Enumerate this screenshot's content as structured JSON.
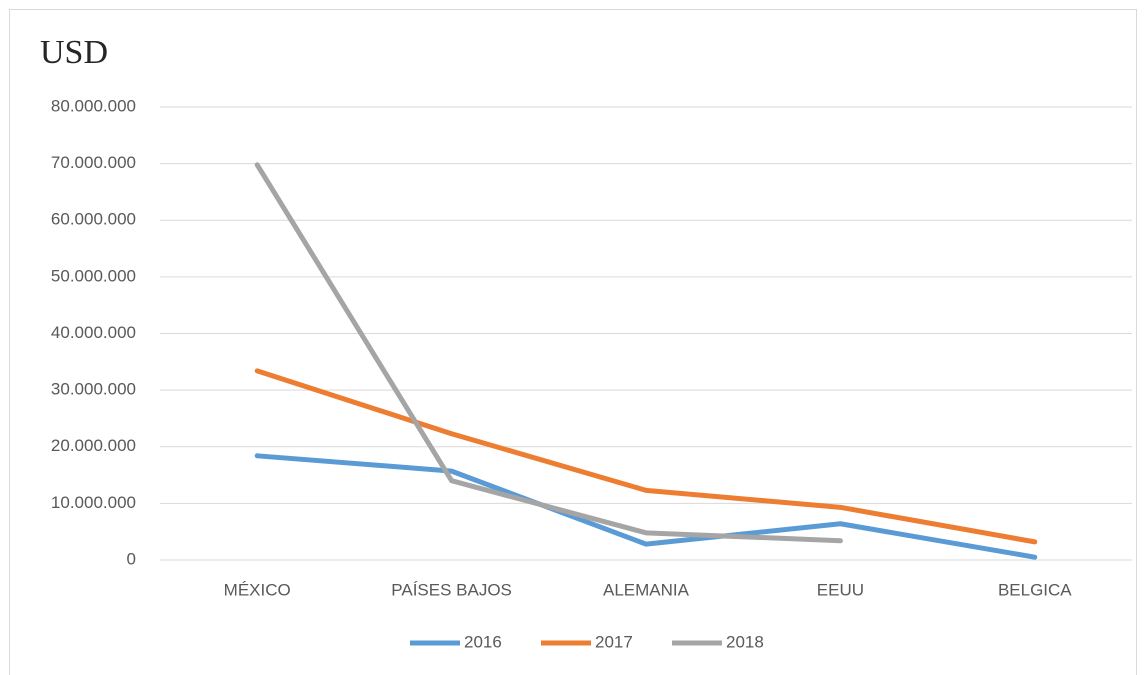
{
  "chart_data": {
    "type": "line",
    "title": "USD",
    "categories": [
      "MÉXICO",
      "PAÍSES BAJOS",
      "ALEMANIA",
      "EEUU",
      "BELGICA"
    ],
    "series": [
      {
        "name": "2016",
        "color": "#5b9bd5",
        "values": [
          18400000,
          15700000,
          2800000,
          6400000,
          500000
        ]
      },
      {
        "name": "2017",
        "color": "#ed7d31",
        "values": [
          33400000,
          22300000,
          12300000,
          9300000,
          3200000
        ]
      },
      {
        "name": "2018",
        "color": "#a5a5a5",
        "values": [
          69800000,
          14000000,
          4800000,
          3400000,
          null
        ]
      }
    ],
    "ylim": [
      0,
      80000000
    ],
    "yticks": [
      0,
      {
        "value": 10000000,
        "label": "10.000.000"
      },
      {
        "value": 20000000,
        "label": "20.000.000"
      },
      {
        "value": 30000000,
        "label": "30.000.000"
      },
      {
        "value": 40000000,
        "label": "40.000.000"
      },
      {
        "value": 50000000,
        "label": "50.000.000"
      },
      {
        "value": 60000000,
        "label": "60.000.000"
      },
      {
        "value": 70000000,
        "label": "70.000.000"
      },
      {
        "value": 80000000,
        "label": "80.000.000"
      }
    ],
    "grid": true,
    "legend": "bottom"
  }
}
